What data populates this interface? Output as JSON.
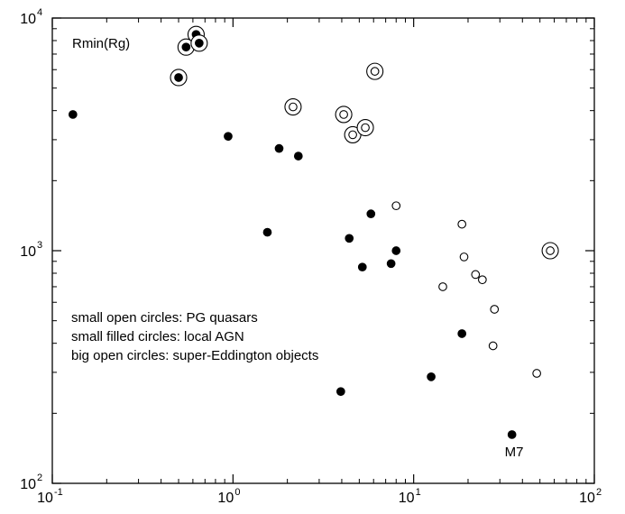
{
  "chart_data": {
    "type": "scatter",
    "xscale": "log",
    "yscale": "log",
    "xlim": [
      0.1,
      100
    ],
    "ylim": [
      100,
      10000
    ],
    "x_ticks": [
      {
        "value": 0.1,
        "base": "10",
        "exp": "-1"
      },
      {
        "value": 1,
        "base": "10",
        "exp": "0"
      },
      {
        "value": 10,
        "base": "10",
        "exp": "1"
      },
      {
        "value": 100,
        "base": "10",
        "exp": "2"
      }
    ],
    "y_ticks": [
      {
        "value": 100,
        "base": "10",
        "exp": "2"
      },
      {
        "value": 1000,
        "base": "10",
        "exp": "3"
      },
      {
        "value": 10000,
        "base": "10",
        "exp": "4"
      }
    ],
    "ylabel": "Rmin(Rg)",
    "legend_lines": [
      "small open circles: PG quasars",
      "small filled circles: local AGN",
      "big open circles: super-Eddington objects"
    ],
    "annotations": [
      {
        "text": "M7",
        "x": 35,
        "y": 162
      }
    ],
    "series": [
      {
        "marker": "filled",
        "points": [
          [
            0.13,
            3850
          ],
          [
            0.94,
            3100
          ],
          [
            1.55,
            1200
          ],
          [
            1.8,
            2750
          ],
          [
            2.3,
            2550
          ],
          [
            3.95,
            248
          ],
          [
            4.4,
            1130
          ],
          [
            5.2,
            850
          ],
          [
            5.8,
            1440
          ],
          [
            7.5,
            880
          ],
          [
            8.0,
            1000
          ],
          [
            12.5,
            287
          ],
          [
            18.5,
            440
          ],
          [
            35,
            162
          ]
        ]
      },
      {
        "marker": "open",
        "points": [
          [
            8.0,
            1560
          ],
          [
            14.5,
            700
          ],
          [
            18.5,
            1300
          ],
          [
            19.0,
            940
          ],
          [
            22,
            790
          ],
          [
            24,
            750
          ],
          [
            28,
            560
          ],
          [
            27.5,
            390
          ],
          [
            48,
            297
          ]
        ]
      },
      {
        "marker": "filled-ringed",
        "points": [
          [
            0.5,
            5550
          ],
          [
            0.55,
            7500
          ],
          [
            0.625,
            8500
          ],
          [
            0.65,
            7800
          ]
        ]
      },
      {
        "marker": "open-ringed",
        "points": [
          [
            2.15,
            4150
          ],
          [
            4.1,
            3850
          ],
          [
            4.6,
            3150
          ],
          [
            5.4,
            3380
          ],
          [
            6.1,
            5900
          ],
          [
            57,
            1000
          ]
        ]
      }
    ]
  }
}
